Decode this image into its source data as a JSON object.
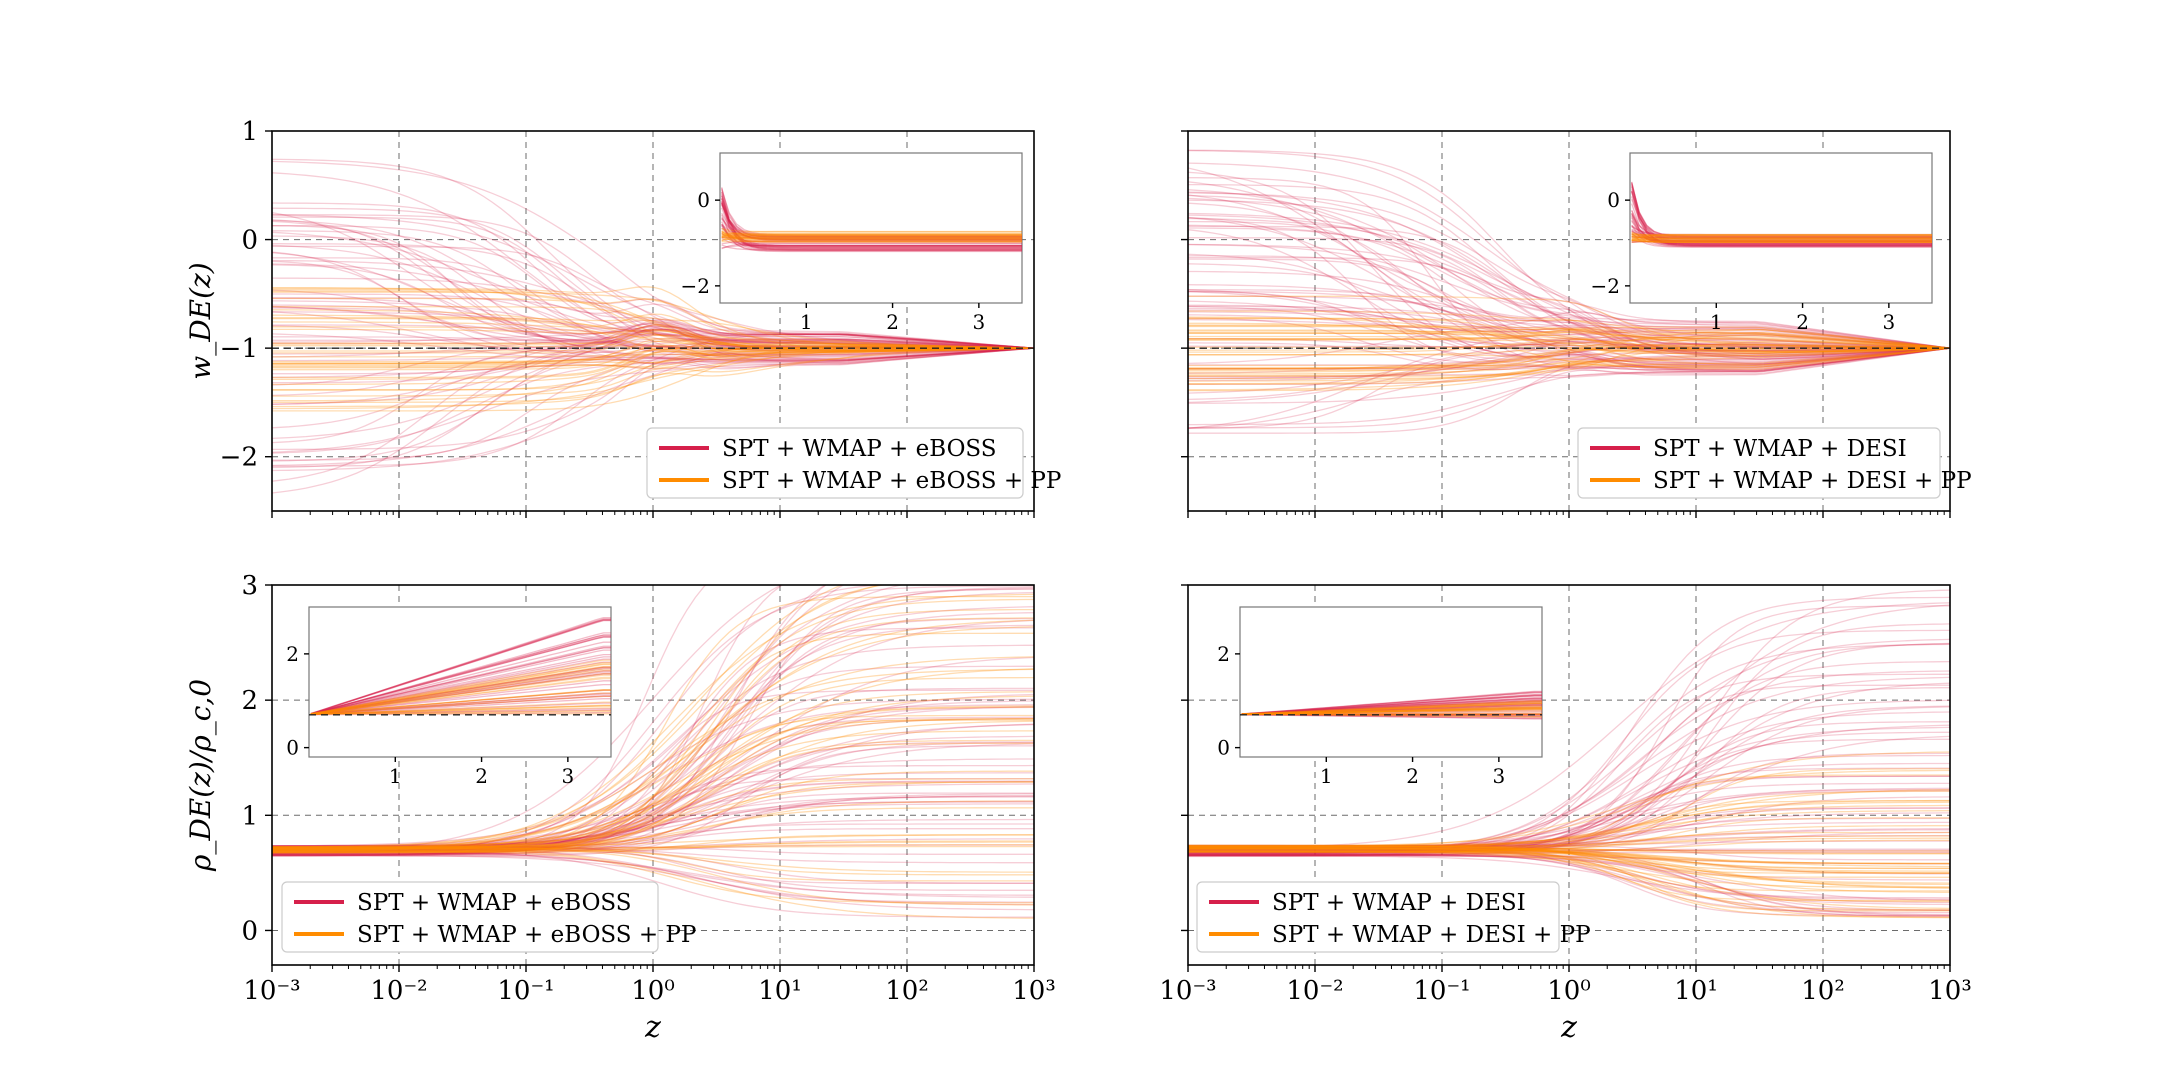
{
  "figure": {
    "x_label": "z",
    "colors": {
      "primary": "#d6204b",
      "secondary": "#ff8c00"
    }
  },
  "chart_data": [
    {
      "id": "wde-eboss",
      "type": "line",
      "xscale": "log",
      "xlim": [
        0.001,
        1000
      ],
      "ylim": [
        -2.5,
        1
      ],
      "ylabel": "w_DE(z)",
      "yticks": [
        1,
        0,
        -1,
        -2
      ],
      "ytick_labels": [
        "1",
        "0",
        "−1",
        "−2"
      ],
      "xtick_labels": [
        "10⁻³",
        "10⁻²",
        "10⁻¹",
        "10⁰",
        "10¹",
        "10²",
        "10³"
      ],
      "reference_line": -1,
      "legend": {
        "location": "lower-right",
        "entries": [
          "SPT + WMAP + eBOSS",
          "SPT + WMAP + eBOSS + PP"
        ]
      },
      "series": [
        {
          "name": "SPT + WMAP + eBOSS",
          "color": "#d6204b",
          "n_samples": 70,
          "low_z_value_range": [
            -2.4,
            0.8
          ],
          "transition_z_range": [
            0.01,
            0.6
          ],
          "bump_at_z1": 0.3,
          "high_z_value": -1,
          "high_z_spread": 0.15
        },
        {
          "name": "SPT + WMAP + eBOSS + PP",
          "color": "#ff8c00",
          "n_samples": 40,
          "low_z_value_range": [
            -1.6,
            -0.4
          ],
          "transition_z_range": [
            0.5,
            5
          ],
          "bump_at_z1": 0.3,
          "high_z_value": -1,
          "high_z_spread": 0.05
        }
      ],
      "inset": {
        "xlim": [
          0,
          3.5
        ],
        "ylim": [
          -2.4,
          1.1
        ],
        "xticks": [
          1,
          2,
          3
        ],
        "xtick_labels": [
          "1",
          "2",
          "3"
        ],
        "yticks": [
          0,
          -2
        ],
        "ytick_labels": [
          "0",
          "−2"
        ],
        "series": [
          {
            "name": "SPT + WMAP + eBOSS",
            "color": "#d6204b",
            "start_range": [
              -1.2,
              0.6
            ],
            "end_range": [
              -1.2,
              -0.8
            ]
          },
          {
            "name": "SPT + WMAP + eBOSS + PP",
            "color": "#ff8c00",
            "start_range": [
              -1.0,
              -0.6
            ],
            "end_range": [
              -1.0,
              -0.7
            ]
          }
        ]
      }
    },
    {
      "id": "wde-desi",
      "type": "line",
      "xscale": "log",
      "xlim": [
        0.001,
        1000
      ],
      "ylim": [
        -2.5,
        1
      ],
      "ylabel": "",
      "yticks": [],
      "ytick_labels": [],
      "xtick_labels": [
        "10⁻³",
        "10⁻²",
        "10⁻¹",
        "10⁰",
        "10¹",
        "10²",
        "10³"
      ],
      "reference_line": -1,
      "legend": {
        "location": "lower-right",
        "entries": [
          "SPT + WMAP + DESI",
          "SPT + WMAP + DESI + PP"
        ]
      },
      "series": [
        {
          "name": "SPT + WMAP + DESI",
          "color": "#d6204b",
          "n_samples": 75,
          "low_z_value_range": [
            -1.8,
            0.85
          ],
          "transition_z_range": [
            0.02,
            0.4
          ],
          "bump_at_z1": 0.15,
          "high_z_value": -1,
          "high_z_spread": 0.25
        },
        {
          "name": "SPT + WMAP + DESI + PP",
          "color": "#ff8c00",
          "n_samples": 40,
          "low_z_value_range": [
            -1.4,
            -0.5
          ],
          "transition_z_range": [
            0.3,
            3
          ],
          "bump_at_z1": 0.1,
          "high_z_value": -1,
          "high_z_spread": 0.2
        }
      ],
      "inset": {
        "xlim": [
          0,
          3.5
        ],
        "ylim": [
          -2.4,
          1.1
        ],
        "xticks": [
          1,
          2,
          3
        ],
        "xtick_labels": [
          "1",
          "2",
          "3"
        ],
        "yticks": [
          0,
          -2
        ],
        "ytick_labels": [
          "0",
          "−2"
        ],
        "series": [
          {
            "name": "SPT + WMAP + DESI",
            "color": "#d6204b",
            "start_range": [
              -1.1,
              0.7
            ],
            "end_range": [
              -1.1,
              -0.8
            ]
          },
          {
            "name": "SPT + WMAP + DESI + PP",
            "color": "#ff8c00",
            "start_range": [
              -1.0,
              -0.7
            ],
            "end_range": [
              -1.0,
              -0.8
            ]
          }
        ]
      }
    },
    {
      "id": "rho-eboss",
      "type": "line",
      "xscale": "log",
      "xlim": [
        0.001,
        1000
      ],
      "ylim": [
        -0.3,
        3
      ],
      "ylabel": "ρ_DE(z)/ρ_c,0",
      "yticks": [
        3,
        2,
        1,
        0
      ],
      "ytick_labels": [
        "3",
        "2",
        "1",
        "0"
      ],
      "xtick_labels": [
        "10⁻³",
        "10⁻²",
        "10⁻¹",
        "10⁰",
        "10¹",
        "10²",
        "10³"
      ],
      "reference_line": null,
      "legend": {
        "location": "lower-left",
        "entries": [
          "SPT + WMAP + eBOSS",
          "SPT + WMAP + eBOSS + PP"
        ]
      },
      "series": [
        {
          "name": "SPT + WMAP + eBOSS",
          "color": "#d6204b",
          "n_samples": 70,
          "low_z_value": 0.69,
          "low_z_spread": 0.05,
          "high_z_range": [
            0.1,
            3.4
          ],
          "transition_z_range": [
            0.8,
            6
          ]
        },
        {
          "name": "SPT + WMAP + eBOSS + PP",
          "color": "#ff8c00",
          "n_samples": 45,
          "low_z_value": 0.7,
          "low_z_spread": 0.03,
          "high_z_range": [
            0.1,
            3.3
          ],
          "transition_z_range": [
            1.2,
            4
          ]
        }
      ],
      "inset": {
        "xlim": [
          0,
          3.5
        ],
        "ylim": [
          -0.2,
          3.0
        ],
        "xticks": [
          1,
          2,
          3
        ],
        "xtick_labels": [
          "1",
          "2",
          "3"
        ],
        "yticks": [
          2,
          0
        ],
        "ytick_labels": [
          "2",
          "0"
        ],
        "reference_line": 0.7,
        "series": [
          {
            "name": "SPT + WMAP + eBOSS",
            "color": "#d6204b",
            "start_range": [
              0.7,
              0.72
            ],
            "end_range": [
              0.65,
              2.8
            ]
          },
          {
            "name": "SPT + WMAP + eBOSS + PP",
            "color": "#ff8c00",
            "start_range": [
              0.7,
              0.72
            ],
            "end_range": [
              0.7,
              1.9
            ]
          }
        ]
      }
    },
    {
      "id": "rho-desi",
      "type": "line",
      "xscale": "log",
      "xlim": [
        0.001,
        1000
      ],
      "ylim": [
        -0.3,
        3
      ],
      "ylabel": "",
      "yticks": [],
      "ytick_labels": [],
      "xtick_labels": [
        "10⁻³",
        "10⁻²",
        "10⁻¹",
        "10⁰",
        "10¹",
        "10²",
        "10³"
      ],
      "reference_line": null,
      "legend": {
        "location": "lower-left",
        "entries": [
          "SPT + WMAP + DESI",
          "SPT + WMAP + DESI + PP"
        ]
      },
      "series": [
        {
          "name": "SPT + WMAP + DESI",
          "color": "#d6204b",
          "n_samples": 70,
          "low_z_value": 0.69,
          "low_z_spread": 0.05,
          "high_z_range": [
            0.1,
            3.0
          ],
          "transition_z_range": [
            2,
            15
          ]
        },
        {
          "name": "SPT + WMAP + DESI + PP",
          "color": "#ff8c00",
          "n_samples": 45,
          "low_z_value": 0.71,
          "low_z_spread": 0.03,
          "high_z_range": [
            0.1,
            1.6
          ],
          "transition_z_range": [
            2,
            10
          ]
        }
      ],
      "inset": {
        "xlim": [
          0,
          3.5
        ],
        "ylim": [
          -0.2,
          3.0
        ],
        "xticks": [
          1,
          2,
          3
        ],
        "xtick_labels": [
          "1",
          "2",
          "3"
        ],
        "yticks": [
          2,
          0
        ],
        "ytick_labels": [
          "2",
          "0"
        ],
        "reference_line": 0.7,
        "series": [
          {
            "name": "SPT + WMAP + DESI",
            "color": "#d6204b",
            "start_range": [
              0.7,
              0.72
            ],
            "end_range": [
              0.6,
              1.2
            ]
          },
          {
            "name": "SPT + WMAP + DESI + PP",
            "color": "#ff8c00",
            "start_range": [
              0.7,
              0.72
            ],
            "end_range": [
              0.65,
              1.0
            ]
          }
        ]
      }
    }
  ]
}
